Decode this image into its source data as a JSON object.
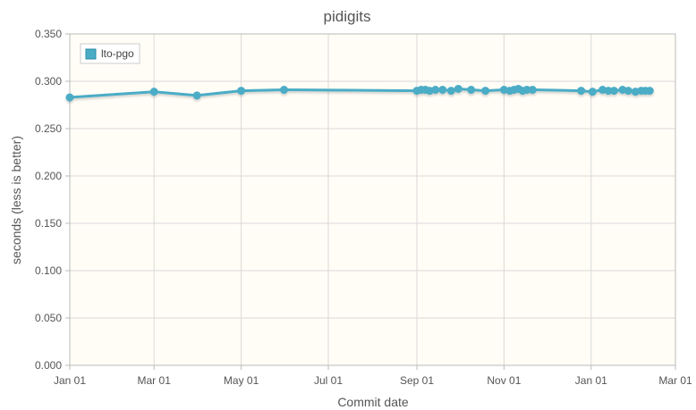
{
  "chart_data": {
    "type": "line",
    "title": "pidigits",
    "xlabel": "Commit date",
    "ylabel": "seconds (less is better)",
    "ylim": [
      0,
      0.35
    ],
    "y_ticks": [
      "0.000",
      "0.050",
      "0.100",
      "0.150",
      "0.200",
      "0.250",
      "0.300",
      "0.350"
    ],
    "x_ticks": [
      {
        "label": "Jan 01",
        "date": "2021-01-01"
      },
      {
        "label": "Mar 01",
        "date": "2021-03-01"
      },
      {
        "label": "May 01",
        "date": "2021-05-01"
      },
      {
        "label": "Jul 01",
        "date": "2021-07-01"
      },
      {
        "label": "Sep 01",
        "date": "2021-09-01"
      },
      {
        "label": "Nov 01",
        "date": "2021-11-01"
      },
      {
        "label": "Jan 01",
        "date": "2022-01-01"
      },
      {
        "label": "Mar 01",
        "date": "2022-03-01"
      }
    ],
    "xlim": [
      "2021-01-01",
      "2022-03-01"
    ],
    "grid": true,
    "legend_position": "top-left",
    "series": [
      {
        "name": "lto-pgo",
        "color": "#4bacc6",
        "points": [
          {
            "x": "2021-01-01",
            "y": 0.283
          },
          {
            "x": "2021-03-01",
            "y": 0.289
          },
          {
            "x": "2021-03-31",
            "y": 0.285
          },
          {
            "x": "2021-05-01",
            "y": 0.29
          },
          {
            "x": "2021-05-31",
            "y": 0.291
          },
          {
            "x": "2021-09-01",
            "y": 0.29
          },
          {
            "x": "2021-09-04",
            "y": 0.291
          },
          {
            "x": "2021-09-07",
            "y": 0.291
          },
          {
            "x": "2021-09-10",
            "y": 0.29
          },
          {
            "x": "2021-09-14",
            "y": 0.291
          },
          {
            "x": "2021-09-19",
            "y": 0.291
          },
          {
            "x": "2021-09-25",
            "y": 0.29
          },
          {
            "x": "2021-09-30",
            "y": 0.292
          },
          {
            "x": "2021-10-09",
            "y": 0.291
          },
          {
            "x": "2021-10-19",
            "y": 0.29
          },
          {
            "x": "2021-11-01",
            "y": 0.291
          },
          {
            "x": "2021-11-05",
            "y": 0.29
          },
          {
            "x": "2021-11-08",
            "y": 0.291
          },
          {
            "x": "2021-11-11",
            "y": 0.292
          },
          {
            "x": "2021-11-14",
            "y": 0.29
          },
          {
            "x": "2021-11-17",
            "y": 0.291
          },
          {
            "x": "2021-11-21",
            "y": 0.291
          },
          {
            "x": "2021-12-25",
            "y": 0.29
          },
          {
            "x": "2022-01-02",
            "y": 0.289
          },
          {
            "x": "2022-01-09",
            "y": 0.291
          },
          {
            "x": "2022-01-13",
            "y": 0.29
          },
          {
            "x": "2022-01-17",
            "y": 0.29
          },
          {
            "x": "2022-01-23",
            "y": 0.291
          },
          {
            "x": "2022-01-27",
            "y": 0.29
          },
          {
            "x": "2022-02-01",
            "y": 0.289
          },
          {
            "x": "2022-02-05",
            "y": 0.29
          },
          {
            "x": "2022-02-08",
            "y": 0.29
          },
          {
            "x": "2022-02-11",
            "y": 0.29
          }
        ]
      }
    ]
  }
}
